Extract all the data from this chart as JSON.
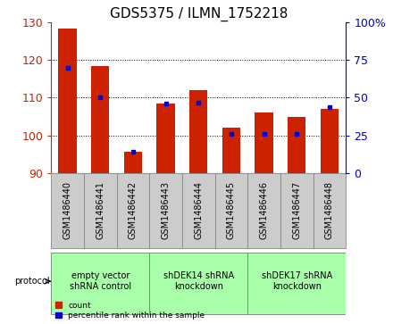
{
  "title": "GDS5375 / ILMN_1752218",
  "samples": [
    "GSM1486440",
    "GSM1486441",
    "GSM1486442",
    "GSM1486443",
    "GSM1486444",
    "GSM1486445",
    "GSM1486446",
    "GSM1486447",
    "GSM1486448"
  ],
  "counts": [
    128.5,
    118.5,
    95.5,
    108.5,
    112.0,
    102.0,
    106.0,
    105.0,
    107.0
  ],
  "percentiles": [
    70,
    50,
    14,
    46,
    47,
    26,
    26,
    26,
    44
  ],
  "ylim_left": [
    90,
    130
  ],
  "yticks_left": [
    90,
    100,
    110,
    120,
    130
  ],
  "ylim_right": [
    0,
    100
  ],
  "yticks_right": [
    0,
    25,
    50,
    75,
    100
  ],
  "yticklabels_right": [
    "0",
    "25",
    "50",
    "75",
    "100%"
  ],
  "bar_color": "#cc2200",
  "dot_color": "#0000cc",
  "bar_width": 0.55,
  "groups": [
    {
      "label": "empty vector\nshRNA control",
      "start": 0,
      "end": 3,
      "color": "#aaffaa"
    },
    {
      "label": "shDEK14 shRNA\nknockdown",
      "start": 3,
      "end": 6,
      "color": "#aaffaa"
    },
    {
      "label": "shDEK17 shRNA\nknockdown",
      "start": 6,
      "end": 9,
      "color": "#aaffaa"
    }
  ],
  "protocol_label": "protocol",
  "legend_items": [
    {
      "color": "#cc2200",
      "label": "count"
    },
    {
      "color": "#0000cc",
      "label": "percentile rank within the sample"
    }
  ],
  "grid_color": "#000000",
  "axis_color_left": "#cc2200",
  "axis_color_right": "#0000cc",
  "title_fontsize": 11,
  "tick_fontsize": 9,
  "xlabel_fontsize": 7,
  "sample_box_color": "#cccccc",
  "sample_box_edge": "#888888"
}
